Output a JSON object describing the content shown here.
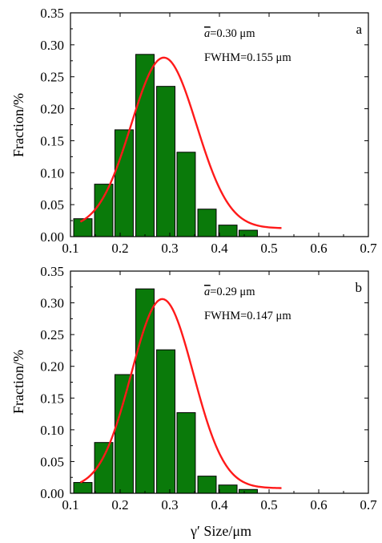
{
  "figure": {
    "xlabel": "γ′ Size/μm"
  },
  "chart_data": [
    {
      "type": "bar",
      "panel_label": "a",
      "ylabel": "Fraction/%",
      "xlim": [
        0.1,
        0.7
      ],
      "ylim": [
        0,
        0.35
      ],
      "xticks": [
        "0.1",
        "0.2",
        "0.3",
        "0.4",
        "0.5",
        "0.6",
        "0.7"
      ],
      "yticks": [
        "0.00",
        "0.05",
        "0.10",
        "0.15",
        "0.20",
        "0.25",
        "0.30",
        "0.35"
      ],
      "bar_width": 0.037,
      "bins": [
        0.125,
        0.167,
        0.208,
        0.25,
        0.292,
        0.333,
        0.375,
        0.417,
        0.458,
        0.5
      ],
      "values": [
        0.028,
        0.082,
        0.167,
        0.285,
        0.235,
        0.132,
        0.043,
        0.018,
        0.01,
        0.0
      ],
      "annotation_mean_prefix": "a",
      "annotation_mean_value": "=0.30 μm",
      "annotation_fwhm": "FWHM=0.155 μm",
      "fit_curve": {
        "type": "gaussian",
        "baseline": 0.013,
        "amplitude": 0.267,
        "center": 0.288,
        "fwhm": 0.155,
        "x_range": [
          0.12,
          0.525
        ],
        "color": "#ff1a1a"
      },
      "bar_color": "#0a7a0a"
    },
    {
      "type": "bar",
      "panel_label": "b",
      "ylabel": "Fraction/%",
      "xlim": [
        0.1,
        0.7
      ],
      "ylim": [
        0,
        0.35
      ],
      "xticks": [
        "0.1",
        "0.2",
        "0.3",
        "0.4",
        "0.5",
        "0.6",
        "0.7"
      ],
      "yticks": [
        "0.00",
        "0.05",
        "0.10",
        "0.15",
        "0.20",
        "0.25",
        "0.30",
        "0.35"
      ],
      "bar_width": 0.037,
      "bins": [
        0.125,
        0.167,
        0.208,
        0.25,
        0.292,
        0.333,
        0.375,
        0.417,
        0.458,
        0.5
      ],
      "values": [
        0.017,
        0.08,
        0.187,
        0.322,
        0.226,
        0.127,
        0.027,
        0.013,
        0.006,
        0.0
      ],
      "annotation_mean_prefix": "a",
      "annotation_mean_value": "=0.29 μm",
      "annotation_fwhm": "FWHM=0.147 μm",
      "fit_curve": {
        "type": "gaussian",
        "baseline": 0.008,
        "amplitude": 0.298,
        "center": 0.285,
        "fwhm": 0.147,
        "x_range": [
          0.12,
          0.525
        ],
        "color": "#ff1a1a"
      },
      "bar_color": "#0a7a0a"
    }
  ]
}
